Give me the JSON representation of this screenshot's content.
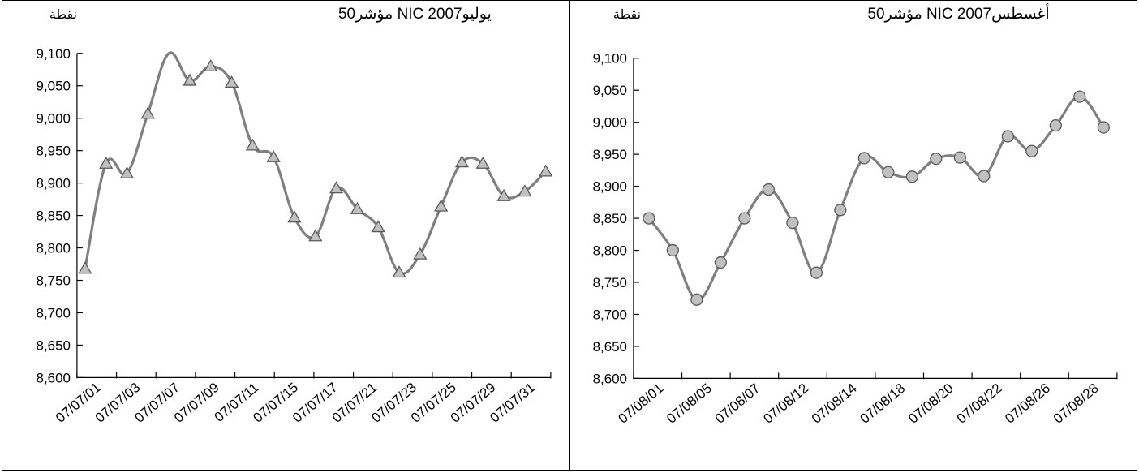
{
  "charts": [
    {
      "title": "مؤشر50 NIC يوليو2007",
      "unit_label": "نقطة",
      "marker": "triangle",
      "colors": {
        "line": "#7f7f7f",
        "marker_fill": "#c0c0c0",
        "marker_stroke": "#595959"
      },
      "ytick_labels": [
        "9,100",
        "9,050",
        "9,000",
        "8,950",
        "8,900",
        "8,850",
        "8,800",
        "8,750",
        "8,700",
        "8,650",
        "8,600"
      ],
      "xtick_labels": [
        "07/07/01",
        "07/07/03",
        "07/07/07",
        "07/07/09",
        "07/07/11",
        "07/07/15",
        "07/07/17",
        "07/07/21",
        "07/07/23",
        "07/07/25",
        "07/07/29",
        "07/07/31"
      ],
      "chart_data": {
        "type": "line",
        "title": "مؤشر50 NIC يوليو2007",
        "ylabel": "نقطة",
        "ylim": [
          8600,
          9100
        ],
        "grid": false,
        "series": [
          {
            "values": [
              8768,
              8930,
              8915,
              9007,
              9100,
              9058,
              9080,
              9055,
              8958,
              8940,
              8847,
              8818,
              8892,
              8860,
              8832,
              8762,
              8790,
              8864,
              8932,
              8930,
              8880,
              8887,
              8918
            ],
            "marked": [
              true,
              true,
              true,
              true,
              false,
              true,
              true,
              true,
              true,
              true,
              true,
              true,
              true,
              true,
              true,
              true,
              true,
              true,
              true,
              true,
              true,
              true,
              true
            ]
          }
        ]
      }
    },
    {
      "title": "مؤشر50 NIC أغسطس2007",
      "unit_label": "نقطة",
      "marker": "circle",
      "colors": {
        "line": "#7f7f7f",
        "marker_fill": "#c0c0c0",
        "marker_stroke": "#595959"
      },
      "ytick_labels": [
        "9,100",
        "9,050",
        "9,000",
        "8,950",
        "8,900",
        "8,850",
        "8,800",
        "8,750",
        "8,700",
        "8,650",
        "8,600"
      ],
      "xtick_labels": [
        "07/08/01",
        "07/08/05",
        "07/08/07",
        "07/08/12",
        "07/08/14",
        "07/08/18",
        "07/08/20",
        "07/08/22",
        "07/08/26",
        "07/08/28"
      ],
      "chart_data": {
        "type": "line",
        "title": "مؤشر50 NIC أغسطس2007",
        "ylabel": "نقطة",
        "ylim": [
          8600,
          9100
        ],
        "grid": false,
        "series": [
          {
            "values": [
              8850,
              8800,
              8723,
              8781,
              8850,
              8895,
              8843,
              8765,
              8863,
              8944,
              8922,
              8915,
              8943,
              8945,
              8916,
              8978,
              8955,
              8995,
              9040,
              8992
            ],
            "marked": [
              true,
              true,
              true,
              true,
              true,
              true,
              true,
              true,
              true,
              true,
              true,
              true,
              true,
              true,
              true,
              true,
              true,
              true,
              true,
              true
            ]
          }
        ]
      }
    }
  ]
}
